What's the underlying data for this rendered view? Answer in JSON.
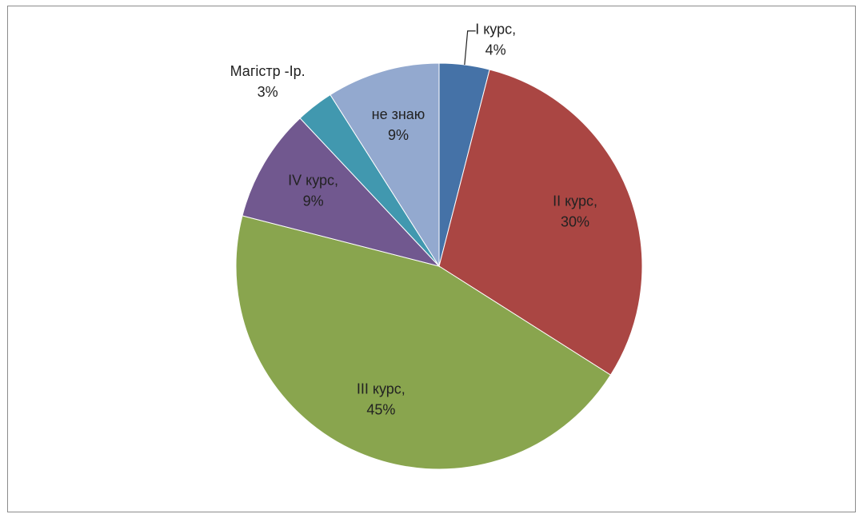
{
  "chart_data": {
    "type": "pie",
    "categories": [
      "I курс,",
      "II курс,",
      "III курс,",
      "IV курс,",
      "Магістр -Ір.",
      "не знаю"
    ],
    "values": [
      4,
      30,
      45,
      9,
      3,
      9
    ],
    "value_labels": [
      "4%",
      "30%",
      "45%",
      "9%",
      "3%",
      "9%"
    ],
    "colors": [
      "#4572a7",
      "#aa4643",
      "#89a54e",
      "#71588f",
      "#4198af",
      "#93a9cf"
    ]
  }
}
